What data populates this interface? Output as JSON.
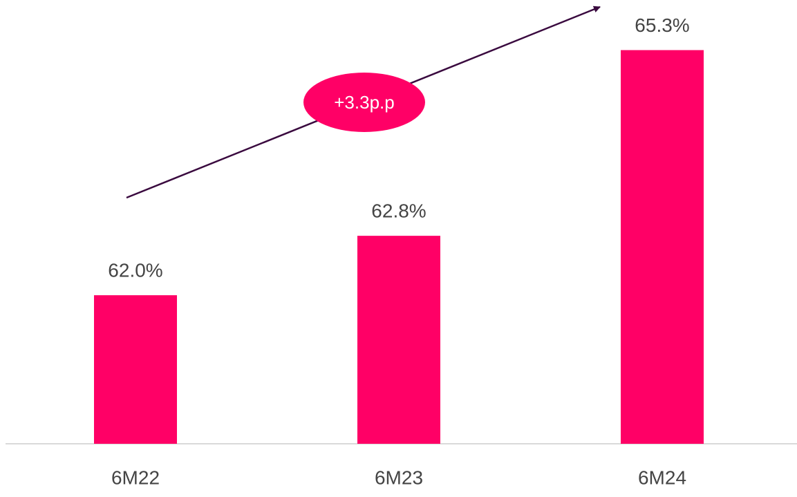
{
  "chart_data": {
    "type": "bar",
    "categories": [
      "6M22",
      "6M23",
      "6M24"
    ],
    "values": [
      62.0,
      62.8,
      65.3
    ],
    "value_labels": [
      "62.0%",
      "62.8%",
      "65.3%"
    ],
    "color": "#ff0066",
    "ylim": [
      60,
      65.5
    ],
    "annotation": "+3.3p.p"
  }
}
